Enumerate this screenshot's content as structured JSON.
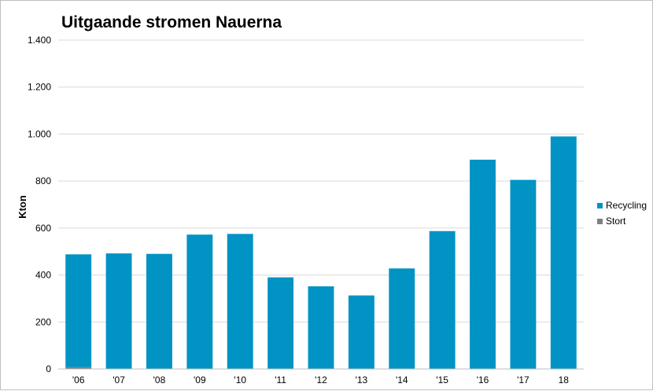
{
  "chart_data": {
    "type": "bar",
    "stacked": true,
    "title": "Uitgaande stromen Nauerna",
    "xlabel": "",
    "ylabel": "Kton",
    "ylim": [
      0,
      1400
    ],
    "yticks": [
      0,
      200,
      400,
      600,
      800,
      1000,
      1200,
      1400
    ],
    "ytick_labels": [
      "0",
      "200",
      "400",
      "600",
      "800",
      "1.000",
      "1.200",
      "1.400"
    ],
    "categories": [
      "'06",
      "'07",
      "'08",
      "'09",
      "'10",
      "'11",
      "'12",
      "'13",
      "'14",
      "'15",
      "'16",
      "'17",
      "18"
    ],
    "grid": true,
    "legend_position": "right",
    "series": [
      {
        "name": "Stort",
        "color": "#808080",
        "values": [
          8,
          0,
          0,
          0,
          0,
          0,
          0,
          0,
          0,
          0,
          0,
          0,
          0
        ]
      },
      {
        "name": "Recycling",
        "color": "#0093c4",
        "values": [
          480,
          492,
          490,
          572,
          575,
          390,
          352,
          313,
          428,
          587,
          891,
          805,
          990
        ]
      }
    ]
  }
}
